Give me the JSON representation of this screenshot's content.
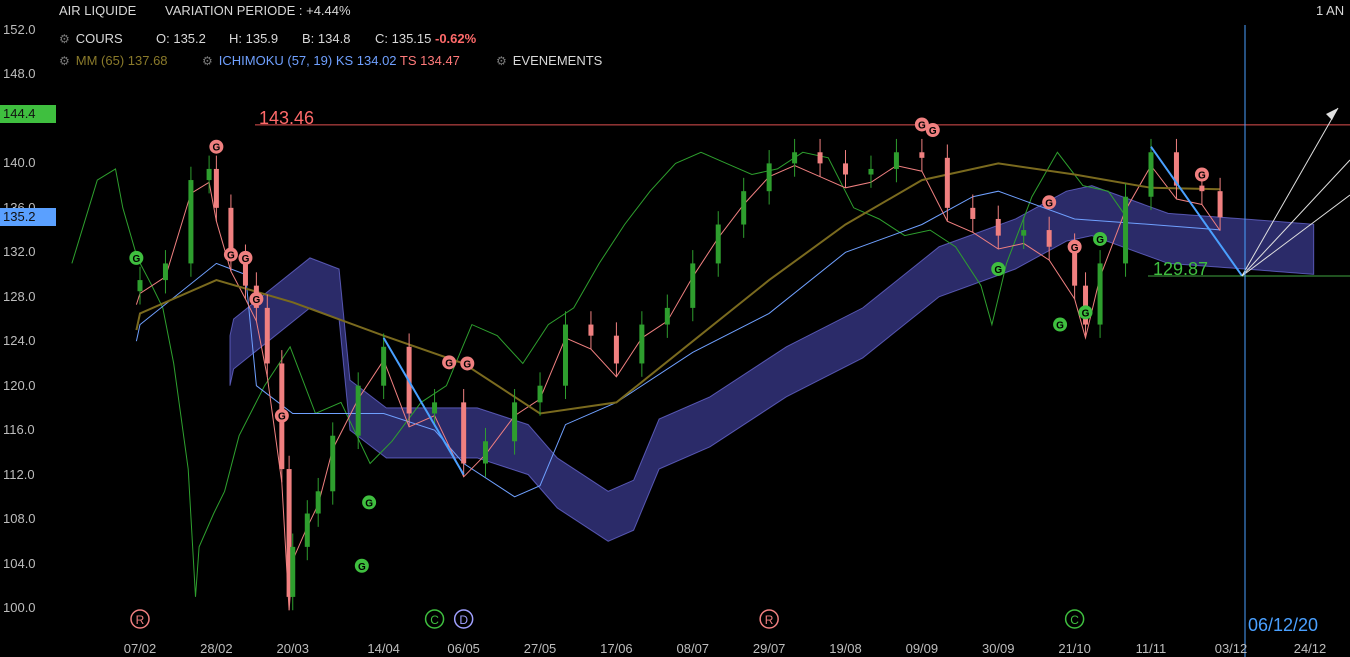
{
  "header": {
    "title": "AIR LIQUIDE",
    "variation": "VARIATION PERIODE : +4.44%",
    "period": "1 AN",
    "cours_label": "COURS",
    "open": "O: 135.2",
    "high": "H: 135.9",
    "low": "B: 134.8",
    "close": "C: 135.15",
    "change": "-0.62%",
    "mm": "MM (65) 137.68",
    "ichimoku_label": "ICHIMOKU (57, 19)",
    "ks": "KS 134.02",
    "ts": "TS 134.47",
    "events": "EVENEMENTS"
  },
  "colors": {
    "up": "#2e9e2e",
    "down": "#f08080",
    "ma": "#7a6a1e",
    "kijun": "#6fa0ff",
    "tenkan": "#f08080",
    "chikou": "#2ea02e",
    "cloud": "#3a3a8c",
    "resistance": "#e05050",
    "support": "#3fa53f",
    "cursor": "#4aa0ff"
  },
  "chart_data": {
    "type": "candlestick",
    "ylim": [
      98,
      153
    ],
    "y_ticks": [
      "152.0",
      "148.0",
      "144.0",
      "140.0",
      "136.0",
      "132.0",
      "128.0",
      "124.0",
      "120.0",
      "116.0",
      "112.0",
      "108.0",
      "104.0",
      "100.0"
    ],
    "x_ticks": [
      "07/02",
      "28/02",
      "20/03",
      "14/04",
      "06/05",
      "27/05",
      "17/06",
      "08/07",
      "29/07",
      "19/08",
      "09/09",
      "30/09",
      "21/10",
      "11/11",
      "03/12",
      "24/12"
    ],
    "price_tags": [
      {
        "label": "144.4",
        "value": 144.4,
        "color": "#3fbf3f"
      },
      {
        "label": "135.2",
        "value": 135.2,
        "color": "#5aa0ff"
      }
    ],
    "resistance": {
      "label": "143.46",
      "value": 143.46
    },
    "support": {
      "label": "129.87",
      "value": 129.87
    },
    "cursor_date": "06/12/20",
    "trend_lines": [
      {
        "from": [
          "14/04",
          124.3
        ],
        "to": [
          "06/05",
          112.0
        ]
      },
      {
        "from": [
          "11/11",
          141.5
        ],
        "to": [
          "06/12",
          129.9
        ]
      }
    ],
    "close_path": [
      [
        "06/02",
        128.5
      ],
      [
        "07/02",
        129.5
      ],
      [
        "14/02",
        131.0
      ],
      [
        "21/02",
        138.5
      ],
      [
        "26/02",
        139.5
      ],
      [
        "28/02",
        136.0
      ],
      [
        "03/03",
        131.5
      ],
      [
        "07/03",
        129.0
      ],
      [
        "10/03",
        127.0
      ],
      [
        "13/03",
        122.0
      ],
      [
        "17/03",
        112.5
      ],
      [
        "19/03",
        101.0
      ],
      [
        "20/03",
        105.5
      ],
      [
        "24/03",
        108.5
      ],
      [
        "27/03",
        110.5
      ],
      [
        "31/03",
        115.5
      ],
      [
        "07/04",
        120.0
      ],
      [
        "14/04",
        123.5
      ],
      [
        "21/04",
        117.5
      ],
      [
        "28/04",
        118.5
      ],
      [
        "06/05",
        113.0
      ],
      [
        "12/05",
        115.0
      ],
      [
        "20/05",
        118.5
      ],
      [
        "27/05",
        120.0
      ],
      [
        "03/06",
        125.5
      ],
      [
        "10/06",
        124.5
      ],
      [
        "17/06",
        122.0
      ],
      [
        "24/06",
        125.5
      ],
      [
        "01/07",
        127.0
      ],
      [
        "08/07",
        131.0
      ],
      [
        "15/07",
        134.5
      ],
      [
        "22/07",
        137.5
      ],
      [
        "29/07",
        140.0
      ],
      [
        "05/08",
        141.0
      ],
      [
        "12/08",
        140.0
      ],
      [
        "19/08",
        139.0
      ],
      [
        "26/08",
        139.5
      ],
      [
        "02/09",
        141.0
      ],
      [
        "09/09",
        140.5
      ],
      [
        "16/09",
        136.0
      ],
      [
        "23/09",
        135.0
      ],
      [
        "30/09",
        133.5
      ],
      [
        "07/10",
        134.0
      ],
      [
        "14/10",
        132.5
      ],
      [
        "21/10",
        129.0
      ],
      [
        "24/10",
        125.5
      ],
      [
        "28/10",
        131.0
      ],
      [
        "04/11",
        137.0
      ],
      [
        "11/11",
        141.0
      ],
      [
        "18/11",
        138.0
      ],
      [
        "25/11",
        137.5
      ],
      [
        "30/11",
        135.15
      ]
    ],
    "moving_average_65": [
      [
        "06/02",
        125.0
      ],
      [
        "07/02",
        126.5
      ],
      [
        "28/02",
        129.5
      ],
      [
        "20/03",
        127.5
      ],
      [
        "14/04",
        124.5
      ],
      [
        "06/05",
        122.0
      ],
      [
        "27/05",
        117.5
      ],
      [
        "17/06",
        118.5
      ],
      [
        "08/07",
        124.0
      ],
      [
        "29/07",
        129.5
      ],
      [
        "19/08",
        134.5
      ],
      [
        "09/09",
        138.5
      ],
      [
        "30/09",
        140.0
      ],
      [
        "21/10",
        139.0
      ],
      [
        "11/11",
        137.8
      ],
      [
        "30/11",
        137.68
      ]
    ],
    "kijun": [
      [
        "06/02",
        124.0
      ],
      [
        "07/02",
        125.5
      ],
      [
        "28/02",
        131.0
      ],
      [
        "07/03",
        130.0
      ],
      [
        "10/03",
        120.0
      ],
      [
        "20/03",
        117.5
      ],
      [
        "14/04",
        117.5
      ],
      [
        "28/04",
        116.0
      ],
      [
        "06/05",
        113.0
      ],
      [
        "20/05",
        110.0
      ],
      [
        "27/05",
        111.0
      ],
      [
        "03/06",
        116.5
      ],
      [
        "17/06",
        118.5
      ],
      [
        "08/07",
        123.0
      ],
      [
        "29/07",
        126.5
      ],
      [
        "19/08",
        132.0
      ],
      [
        "09/09",
        134.5
      ],
      [
        "23/09",
        137.0
      ],
      [
        "30/09",
        137.5
      ],
      [
        "21/10",
        135.0
      ],
      [
        "11/11",
        134.5
      ],
      [
        "30/11",
        134.02
      ]
    ],
    "markers": [
      {
        "label": "G",
        "date": "28/02",
        "value": 141.5,
        "kind": "sell"
      },
      {
        "label": "G",
        "date": "06/02",
        "value": 131.5,
        "kind": "buy"
      },
      {
        "label": "G",
        "date": "03/03",
        "value": 131.8,
        "kind": "sell"
      },
      {
        "label": "G",
        "date": "07/03",
        "value": 131.5,
        "kind": "sell"
      },
      {
        "label": "G",
        "date": "10/03",
        "value": 127.8,
        "kind": "sell"
      },
      {
        "label": "G",
        "date": "17/03",
        "value": 117.3,
        "kind": "sell"
      },
      {
        "label": "G",
        "date": "08/04",
        "value": 103.8,
        "kind": "buy"
      },
      {
        "label": "G",
        "date": "10/04",
        "value": 109.5,
        "kind": "buy"
      },
      {
        "label": "G",
        "date": "02/05",
        "value": 122.1,
        "kind": "sell"
      },
      {
        "label": "G",
        "date": "07/05",
        "value": 122.0,
        "kind": "sell"
      },
      {
        "label": "G",
        "date": "09/09",
        "value": 143.5,
        "kind": "sell"
      },
      {
        "label": "G",
        "date": "12/09",
        "value": 143.0,
        "kind": "sell"
      },
      {
        "label": "G",
        "date": "30/09",
        "value": 130.5,
        "kind": "buy"
      },
      {
        "label": "G",
        "date": "14/10",
        "value": 136.5,
        "kind": "sell"
      },
      {
        "label": "G",
        "date": "21/10",
        "value": 132.5,
        "kind": "sell"
      },
      {
        "label": "G",
        "date": "17/10",
        "value": 125.5,
        "kind": "buy"
      },
      {
        "label": "G",
        "date": "28/10",
        "value": 133.2,
        "kind": "buy"
      },
      {
        "label": "G",
        "date": "24/10",
        "value": 126.6,
        "kind": "buy"
      },
      {
        "label": "G",
        "date": "25/11",
        "value": 139.0,
        "kind": "sell"
      }
    ],
    "events": [
      {
        "label": "R",
        "date": "07/02",
        "color": "#f08080"
      },
      {
        "label": "C",
        "date": "28/04",
        "color": "#3fbf3f"
      },
      {
        "label": "D",
        "date": "06/05",
        "color": "#a0a0ff"
      },
      {
        "label": "R",
        "date": "29/07",
        "color": "#f08080"
      },
      {
        "label": "C",
        "date": "21/10",
        "color": "#3fbf3f"
      }
    ]
  }
}
